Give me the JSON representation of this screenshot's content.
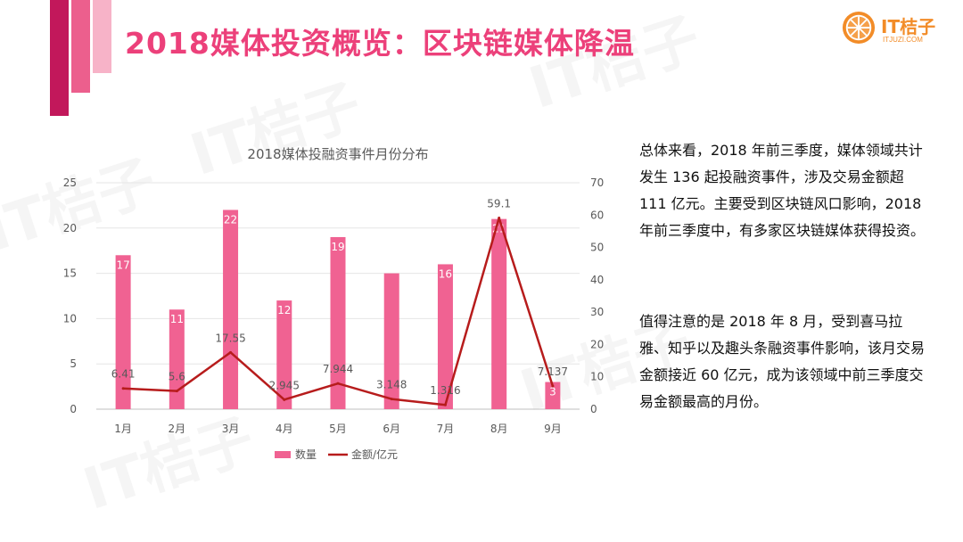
{
  "header": {
    "title": "2018媒体投资概览：区块链媒体降温"
  },
  "brand": {
    "name": "IT桔子",
    "url": "ITJUZI.COM",
    "watermark": "IT桔子"
  },
  "colors": {
    "bar": "#f06292",
    "line": "#b71c1c",
    "accent": "#ec407a",
    "deco_dark": "#c2185b",
    "deco_mid": "#ec5f8d",
    "deco_light": "#f7b3c8",
    "brand_orange": "#f28c28"
  },
  "chart_data": {
    "type": "bar",
    "title": "2018媒体投融资事件月份分布",
    "categories": [
      "1月",
      "2月",
      "3月",
      "4月",
      "5月",
      "6月",
      "7月",
      "8月",
      "9月"
    ],
    "series": [
      {
        "name": "数量",
        "type": "bar",
        "axis": "left",
        "values": [
          17,
          11,
          22,
          12,
          19,
          15,
          16,
          21,
          3
        ],
        "labels": [
          "17",
          "11",
          "22",
          "12",
          "19",
          "",
          "16",
          "21",
          "3"
        ]
      },
      {
        "name": "金额/亿元",
        "type": "line",
        "axis": "right",
        "values": [
          6.41,
          5.6,
          17.55,
          2.945,
          7.944,
          3.148,
          1.316,
          59.1,
          7.137
        ],
        "labels": [
          "6.41",
          "5.6",
          "17.55",
          "2.945",
          "7.944",
          "3.148",
          "1.316",
          "59.1",
          "7.137"
        ]
      }
    ],
    "y_left": {
      "min": 0,
      "max": 25,
      "ticks": [
        "0",
        "5",
        "10",
        "15",
        "20",
        "25"
      ]
    },
    "y_right": {
      "min": 0,
      "max": 70,
      "ticks": [
        "0",
        "10",
        "20",
        "30",
        "40",
        "50",
        "60",
        "70"
      ]
    },
    "grid": true,
    "legend": "bottom"
  },
  "text": {
    "paragraph1": "总体来看，2018 年前三季度，媒体领域共计发生 136 起投融资事件，涉及交易金额超 111 亿元。主要受到区块链风口影响，2018年前三季度中，有多家区块链媒体获得投资。",
    "paragraph2": "值得注意的是 2018 年 8 月，受到喜马拉雅、知乎以及趣头条融资事件影响，该月交易金额接近 60 亿元，成为该领域中前三季度交易金额最高的月份。"
  }
}
